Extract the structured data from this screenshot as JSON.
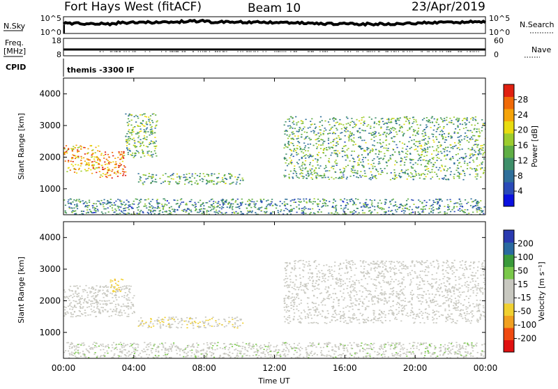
{
  "header": {
    "radar": "Fort Hays West (fitACF)",
    "beam": "Beam 10",
    "date": "23/Apr/2019"
  },
  "summary": {
    "nsky_label": "N.Sky",
    "nsky_ticks": [
      "10^5",
      "10^0"
    ],
    "nsearch_label": "N.Search",
    "nsearch_ticks": [
      "10^5",
      "10^0"
    ],
    "freq_label_line1": "Freq.",
    "freq_label_line2": "[MHz]",
    "freq_ticks": [
      "18",
      "8"
    ],
    "nave_label": "Nave",
    "nave_ticks": [
      "60",
      "0"
    ],
    "cpid_label": "CPID",
    "cpid_text": "themis -3300 IF"
  },
  "time_axis": {
    "title": "Time UT",
    "ticks": [
      "00:00",
      "04:00",
      "08:00",
      "12:00",
      "16:00",
      "20:00",
      "00:00"
    ]
  },
  "chart_data": [
    {
      "type": "heatmap",
      "panel": "power",
      "ylabel": "Slant Range [km]",
      "y_ticks": [
        1000,
        2000,
        3000,
        4000
      ],
      "ylim": [
        180,
        4500
      ],
      "xlim_hours": [
        0,
        24
      ],
      "colorbar_title": "Power [dB]",
      "colorbar_ticks": [
        "28",
        "24",
        "20",
        "16",
        "12",
        "8",
        "4"
      ],
      "colorbar_range": [
        0,
        30
      ],
      "colors": [
        "#0a10e0",
        "#2a4ab8",
        "#2f6f9a",
        "#3f8f6a",
        "#5fae45",
        "#9ccc2e",
        "#e8dc10",
        "#f5a40a",
        "#f06a08",
        "#e02010"
      ],
      "echo_regions": [
        {
          "t": [
            0.0,
            2.0
          ],
          "range_km": [
            1500,
            2400
          ],
          "level": 0.75
        },
        {
          "t": [
            2.0,
            3.5
          ],
          "range_km": [
            1350,
            2200
          ],
          "level": 0.85
        },
        {
          "t": [
            3.5,
            5.3
          ],
          "range_km": [
            2000,
            3400
          ],
          "level": 0.45
        },
        {
          "t": [
            4.2,
            10.2
          ],
          "range_km": [
            1150,
            1500
          ],
          "level": 0.4
        },
        {
          "t": [
            12.5,
            24.0
          ],
          "range_km": [
            1300,
            3300
          ],
          "level": 0.4
        },
        {
          "t": [
            0.0,
            24.0
          ],
          "range_km": [
            180,
            700
          ],
          "level": 0.3
        }
      ]
    },
    {
      "type": "heatmap",
      "panel": "velocity",
      "ylabel": "Slant Range [km]",
      "y_ticks": [
        1000,
        2000,
        3000,
        4000
      ],
      "ylim": [
        180,
        4500
      ],
      "xlim_hours": [
        0,
        24
      ],
      "colorbar_title": "Velocity [m s⁻¹]",
      "colorbar_ticks": [
        "200",
        "100",
        "50",
        "15",
        "-15",
        "-50",
        "-100",
        "-200"
      ],
      "colorbar_range": [
        -250,
        250
      ],
      "colors": [
        "#e01010",
        "#f04a10",
        "#f0a020",
        "#f0d030",
        "#c8c8c0",
        "#c8c8c0",
        "#7ac84a",
        "#3a9a3a",
        "#2a6aa0",
        "#2a3ab0"
      ],
      "echo_regions": [
        {
          "t": [
            0.0,
            4.0
          ],
          "range_km": [
            1500,
            2500
          ],
          "vel": 0
        },
        {
          "t": [
            2.6,
            3.4
          ],
          "range_km": [
            2300,
            2700
          ],
          "vel": -80
        },
        {
          "t": [
            4.2,
            10.2
          ],
          "range_km": [
            1150,
            1500
          ],
          "vel": -40
        },
        {
          "t": [
            12.5,
            24.0
          ],
          "range_km": [
            1300,
            3300
          ],
          "vel": 0
        },
        {
          "t": [
            0.0,
            24.0
          ],
          "range_km": [
            180,
            700
          ],
          "vel": 30
        }
      ]
    }
  ]
}
